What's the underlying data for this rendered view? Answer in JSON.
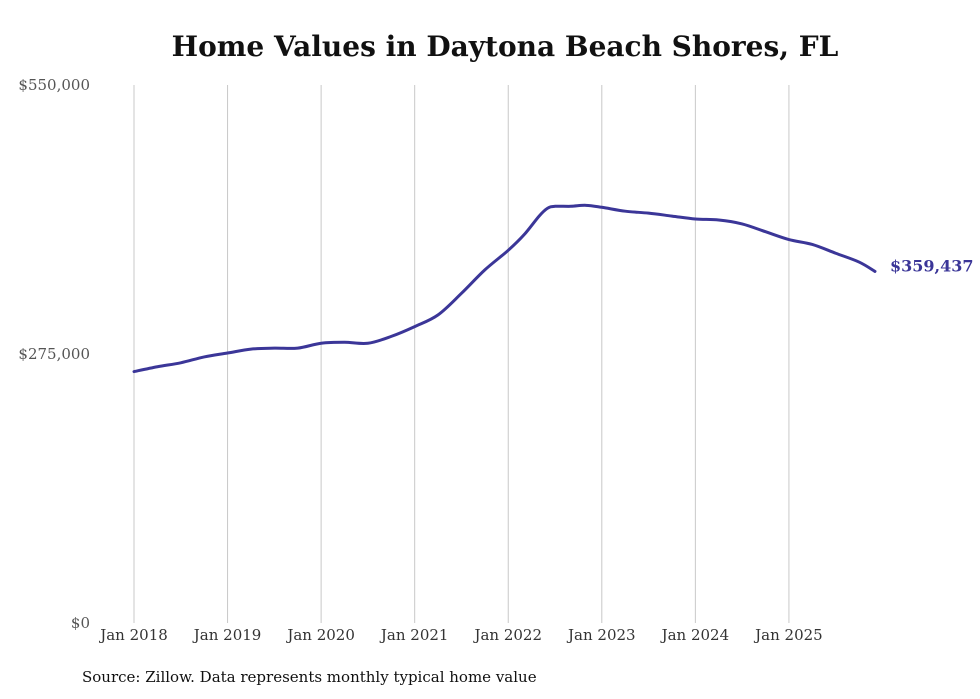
{
  "chart_data": {
    "type": "line",
    "title": "Home Values in Daytona Beach Shores, FL",
    "xlabel": "",
    "ylabel": "",
    "ylim": [
      0,
      550000
    ],
    "y_ticks": [
      0,
      275000,
      550000
    ],
    "y_tick_labels": [
      "$0",
      "$275,000",
      "$550,000"
    ],
    "x_ticks": [
      2018,
      2019,
      2020,
      2021,
      2022,
      2023,
      2024,
      2025
    ],
    "x_tick_labels": [
      "Jan 2018",
      "Jan 2019",
      "Jan 2020",
      "Jan 2021",
      "Jan 2022",
      "Jan 2023",
      "Jan 2024",
      "Jan 2025"
    ],
    "xlim": [
      2018.0,
      2025.92
    ],
    "grid": "vertical",
    "series": [
      {
        "name": "Typical home value",
        "color": "#3b3698",
        "x": [
          2018.0,
          2018.25,
          2018.5,
          2018.75,
          2019.0,
          2019.25,
          2019.5,
          2019.75,
          2020.0,
          2020.25,
          2020.5,
          2020.75,
          2021.0,
          2021.25,
          2021.5,
          2021.75,
          2022.0,
          2022.17,
          2022.33,
          2022.42,
          2022.5,
          2022.67,
          2022.83,
          2023.0,
          2023.25,
          2023.5,
          2023.75,
          2024.0,
          2024.25,
          2024.5,
          2024.75,
          2025.0,
          2025.25,
          2025.5,
          2025.75,
          2025.92
        ],
        "values": [
          257000,
          262000,
          266000,
          272000,
          276000,
          280000,
          281000,
          281000,
          286000,
          287000,
          286000,
          293000,
          303000,
          315000,
          337000,
          361000,
          381000,
          397000,
          416000,
          424000,
          426000,
          426000,
          427000,
          425000,
          421000,
          419000,
          416000,
          413000,
          412000,
          408000,
          400000,
          392000,
          387000,
          378000,
          369000,
          359437
        ]
      }
    ],
    "end_label": "$359,437"
  },
  "source_note": "Source: Zillow. Data represents monthly typical home value"
}
